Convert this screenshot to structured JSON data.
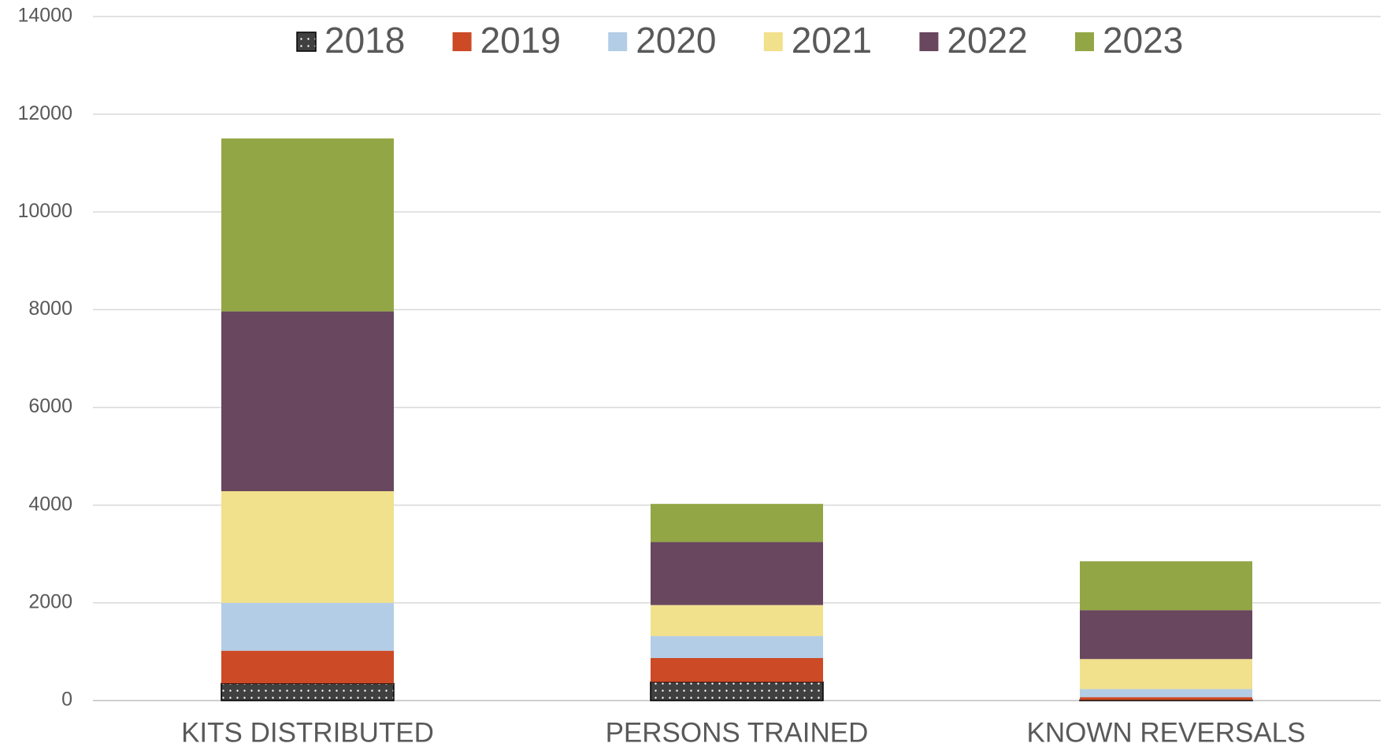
{
  "chart_data": {
    "type": "stacked_bar",
    "categories": [
      "KITS DISTRIBUTED",
      "PERSONS TRAINED",
      "KNOWN REVERSALS"
    ],
    "series": [
      {
        "name": "2018",
        "color": "#404040",
        "pattern": "dots",
        "values": [
          350,
          380,
          10
        ]
      },
      {
        "name": "2019",
        "color": "#cc4a25",
        "values": [
          670,
          490,
          60
        ]
      },
      {
        "name": "2020",
        "color": "#b3cde6",
        "values": [
          980,
          450,
          165
        ]
      },
      {
        "name": "2021",
        "color": "#f1e08c",
        "values": [
          2285,
          635,
          615
        ]
      },
      {
        "name": "2022",
        "color": "#68475f",
        "values": [
          3680,
          1290,
          1000
        ]
      },
      {
        "name": "2023",
        "color": "#93a645",
        "values": [
          3540,
          780,
          1000
        ]
      }
    ],
    "ylim": [
      0,
      14000
    ],
    "yticks": [
      0,
      2000,
      4000,
      6000,
      8000,
      10000,
      12000,
      14000
    ],
    "grid": true,
    "legend": "top"
  }
}
